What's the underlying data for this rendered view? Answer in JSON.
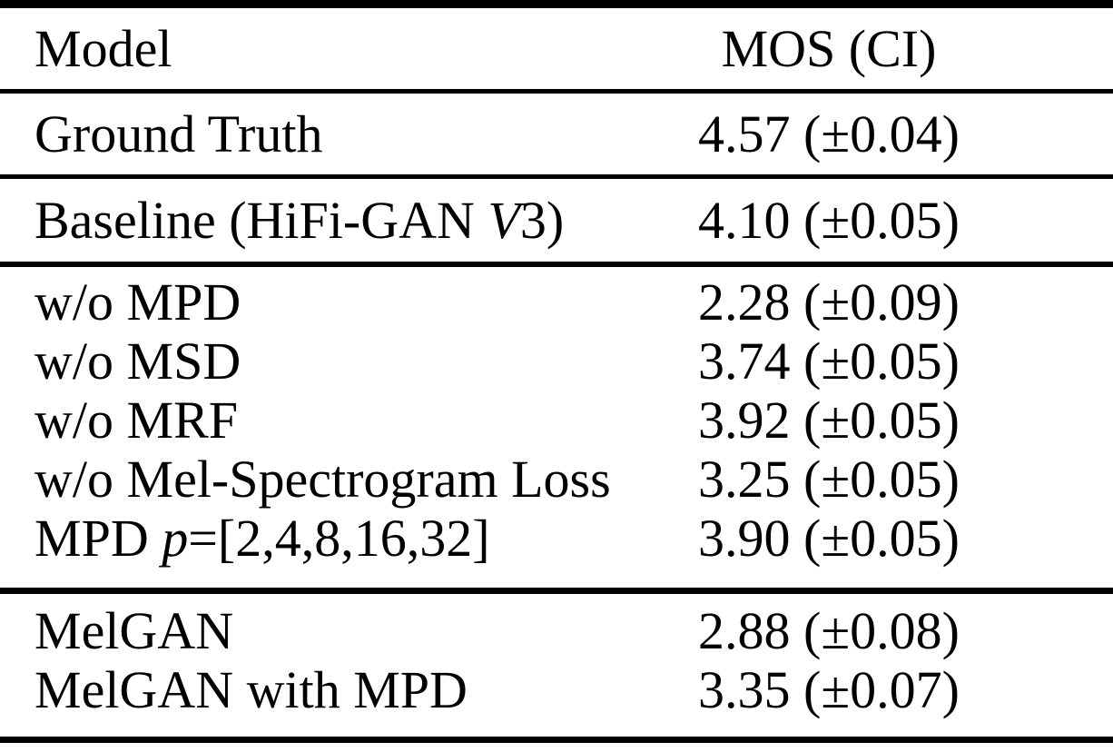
{
  "page": {
    "background_color": "#ffffff",
    "text_color": "#000000",
    "rule_color": "#000000"
  },
  "table": {
    "header": {
      "model_label": "Model",
      "mos_label": "MOS (CI)"
    },
    "sections": [
      {
        "rows": [
          {
            "pre": "Ground Truth",
            "math": "",
            "post": "",
            "mos": "4.57 (±0.04)"
          }
        ]
      },
      {
        "rows": [
          {
            "pre": "Baseline (HiFi-GAN ",
            "math": "V",
            "post": "3)",
            "mos": "4.10 (±0.05)"
          }
        ]
      },
      {
        "rows": [
          {
            "pre": "w/o MPD",
            "math": "",
            "post": "",
            "mos": "2.28 (±0.09)"
          },
          {
            "pre": "w/o MSD",
            "math": "",
            "post": "",
            "mos": "3.74 (±0.05)"
          },
          {
            "pre": "w/o MRF",
            "math": "",
            "post": "",
            "mos": "3.92 (±0.05)"
          },
          {
            "pre": "w/o Mel-Spectrogram Loss",
            "math": "",
            "post": "",
            "mos": "3.25 (±0.05)"
          },
          {
            "pre": "MPD ",
            "math": "p",
            "post": "=[2,4,8,16,32]",
            "mos": "3.90 (±0.05)"
          }
        ]
      },
      {
        "rows": [
          {
            "pre": "MelGAN",
            "math": "",
            "post": "",
            "mos": "2.88 (±0.08)"
          },
          {
            "pre": "MelGAN with MPD",
            "math": "",
            "post": "",
            "mos": "3.35 (±0.07)"
          }
        ]
      }
    ]
  }
}
